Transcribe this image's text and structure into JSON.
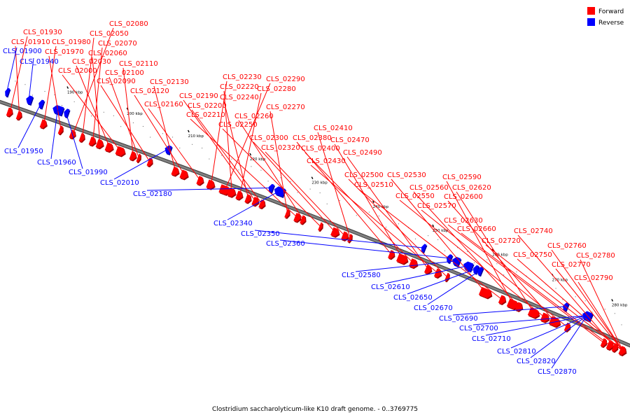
{
  "colors": {
    "forward": "#ff0000",
    "reverse": "#0000ff",
    "backbone": "#808080"
  },
  "legend": {
    "forward": "Forward",
    "reverse": "Reverse"
  },
  "caption": "Clostridium saccharolyticum-like K10 draft genome. - 0..3769775",
  "scale_labels": [
    "190 kbp",
    "200 kbp",
    "210 kbp",
    "220 kbp",
    "230 kbp",
    "240 kbp",
    "250 kbp",
    "260 kbp",
    "270 kbp",
    "280 kbp"
  ],
  "forward_genes": [
    "CLS_01930",
    "CLS_01910",
    "CLS_01980",
    "CLS_01970",
    "CLS_02080",
    "CLS_02050",
    "CLS_02070",
    "CLS_02060",
    "CLS_02030",
    "CLS_02000",
    "CLS_02110",
    "CLS_02100",
    "CLS_02090",
    "CLS_02130",
    "CLS_02120",
    "CLS_02160",
    "CLS_02230",
    "CLS_02290",
    "CLS_02220",
    "CLS_02280",
    "CLS_02240",
    "CLS_02190",
    "CLS_02200",
    "CLS_02270",
    "CLS_02210",
    "CLS_02260",
    "CLS_02250",
    "CLS_02300",
    "CLS_02320",
    "CLS_02410",
    "CLS_02380",
    "CLS_02470",
    "CLS_02400",
    "CLS_02490",
    "CLS_02430",
    "CLS_02500",
    "CLS_02530",
    "CLS_02510",
    "CLS_02590",
    "CLS_02560",
    "CLS_02620",
    "CLS_02550",
    "CLS_02600",
    "CLS_02570",
    "CLS_02630",
    "CLS_02660",
    "CLS_02740",
    "CLS_02720",
    "CLS_02760",
    "CLS_02750",
    "CLS_02780",
    "CLS_02770",
    "CLS_02790"
  ],
  "reverse_genes": [
    "CLS_01900",
    "CLS_01940",
    "CLS_01950",
    "CLS_01960",
    "CLS_01990",
    "CLS_02010",
    "CLS_02180",
    "CLS_02340",
    "CLS_02350",
    "CLS_02360",
    "CLS_02580",
    "CLS_02610",
    "CLS_02650",
    "CLS_02670",
    "CLS_02690",
    "CLS_02700",
    "CLS_02710",
    "CLS_02810",
    "CLS_02820",
    "CLS_02870"
  ]
}
